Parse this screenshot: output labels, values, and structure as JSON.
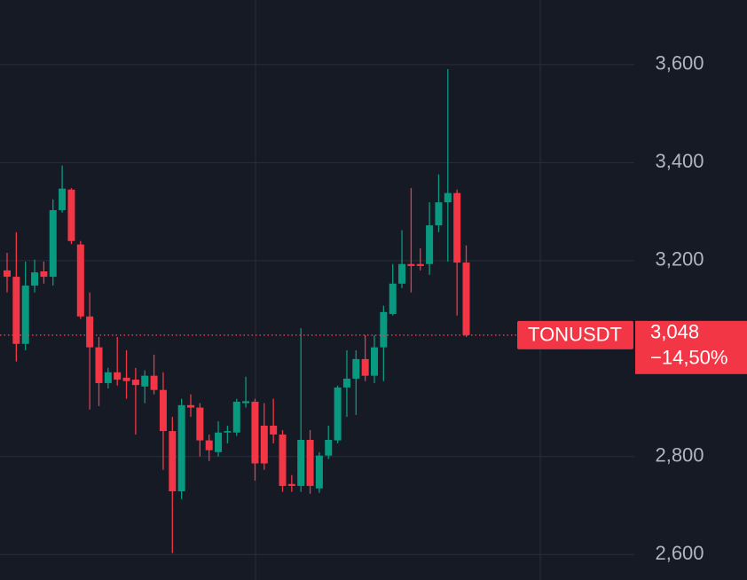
{
  "chart_data": {
    "type": "candlestick",
    "symbol": "TONUSDT",
    "last_price": 3048,
    "last_price_label": "3,048",
    "change": -14.5,
    "change_label": "−14,50%",
    "up_color": "#089981",
    "down_color": "#f23645",
    "grid": true,
    "ylim": [
      2548,
      3732
    ],
    "yticks": [
      {
        "value": 2600,
        "label": "2,600"
      },
      {
        "value": 2800,
        "label": "2,800"
      },
      {
        "value": 3200,
        "label": "3,200"
      },
      {
        "value": 3400,
        "label": "3,400"
      },
      {
        "value": 3600,
        "label": "3,600"
      }
    ],
    "open": [
      3180,
      3167,
      3030,
      3149,
      3178,
      3167,
      3303,
      3345,
      3233,
      3086,
      3023,
      2950,
      2972,
      2961,
      2957,
      2943,
      2965,
      2936,
      2852,
      2729,
      2905,
      2900,
      2833,
      2809,
      2849,
      2849,
      2909,
      2912,
      2863,
      2863,
      2845,
      2744,
      2740,
      2834,
      2735,
      2802,
      2833,
      2941,
      2959,
      2999,
      2965,
      3023,
      3091,
      3153,
      3193,
      3193,
      3193,
      3272,
      3319,
      3338,
      3196
    ],
    "high": [
      3216,
      3258,
      3198,
      3202,
      3198,
      3325,
      3394,
      3348,
      3240,
      3135,
      3044,
      2981,
      3044,
      3017,
      2981,
      2976,
      3008,
      2972,
      2881,
      2918,
      2927,
      2909,
      2845,
      2872,
      2863,
      2918,
      2963,
      2918,
      2909,
      2918,
      2854,
      2762,
      3062,
      2854,
      2809,
      2863,
      2945,
      3017,
      3017,
      3048,
      3048,
      3108,
      3193,
      3262,
      3348,
      3225,
      3319,
      3376,
      3591,
      3345,
      3231
    ],
    "low": [
      3135,
      2994,
      3017,
      3135,
      3153,
      3149,
      3298,
      3234,
      3081,
      2896,
      2903,
      2939,
      2945,
      2918,
      2845,
      2909,
      2927,
      2773,
      2603,
      2713,
      2881,
      2800,
      2791,
      2800,
      2827,
      2842,
      2900,
      2751,
      2773,
      2827,
      2728,
      2728,
      2728,
      2724,
      2726,
      2795,
      2827,
      2881,
      2885,
      2954,
      2950,
      2954,
      3088,
      3144,
      3135,
      3180,
      3171,
      3258,
      3198,
      3088,
      3044
    ],
    "close": [
      3167,
      3030,
      3149,
      3176,
      3167,
      3303,
      3347,
      3240,
      3086,
      3023,
      2950,
      2972,
      2957,
      2954,
      2946,
      2965,
      2936,
      2852,
      2729,
      2905,
      2900,
      2833,
      2813,
      2849,
      2852,
      2912,
      2913,
      2786,
      2786,
      2845,
      2740,
      2740,
      2834,
      2740,
      2802,
      2834,
      2941,
      2959,
      2999,
      2965,
      3023,
      3095,
      3153,
      3193,
      3189,
      3189,
      3272,
      3319,
      3338,
      3196,
      3048
    ]
  }
}
